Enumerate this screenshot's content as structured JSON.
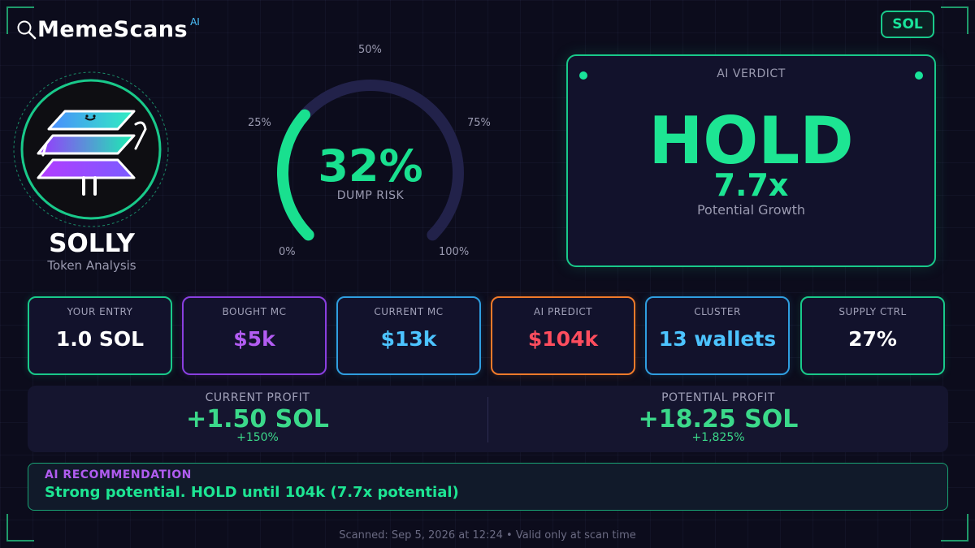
{
  "brand": {
    "name": "MemeScans",
    "badge": "AI"
  },
  "chain_button": {
    "label": "SOL"
  },
  "token": {
    "name": "SOLLY",
    "subtitle": "Token Analysis"
  },
  "gauge": {
    "value_text": "32%",
    "value": 0.32,
    "caption": "DUMP RISK",
    "ticks": [
      "0%",
      "25%",
      "50%",
      "75%",
      "100%"
    ],
    "colors": {
      "fill": "#19e08f",
      "track": "#22224a"
    }
  },
  "verdict": {
    "title": "AI VERDICT",
    "verdict": "HOLD",
    "multiplier": "7.7x",
    "caption": "Potential Growth"
  },
  "stats": [
    {
      "label": "YOUR ENTRY",
      "value": "1.0 SOL",
      "color": "#ffffff",
      "border": "#19c98a"
    },
    {
      "label": "BOUGHT MC",
      "value": "$5k",
      "color": "#b25cf2",
      "border": "#8a3fe0"
    },
    {
      "label": "CURRENT MC",
      "value": "$13k",
      "color": "#4cc3ff",
      "border": "#2f9ee0"
    },
    {
      "label": "AI PREDICT",
      "value": "$104k",
      "color": "#ff4d5e",
      "border": "#f07a2a"
    },
    {
      "label": "CLUSTER",
      "value": "13 wallets",
      "color": "#4cc3ff",
      "border": "#2f9ee0"
    },
    {
      "label": "SUPPLY CTRL",
      "value": "27%",
      "color": "#ffffff",
      "border": "#19c98a"
    }
  ],
  "profit": {
    "current": {
      "label": "CURRENT PROFIT",
      "value": "+1.50 SOL",
      "percent": "+150%"
    },
    "potential": {
      "label": "POTENTIAL PROFIT",
      "value": "+18.25 SOL",
      "percent": "+1,825%"
    }
  },
  "recommendation": {
    "label": "AI RECOMMENDATION",
    "text": "Strong potential. HOLD until 104k (7.7x potential)"
  },
  "footer": {
    "text": "Scanned: Sep 5, 2026 at 12:24  •  Valid only at scan time"
  }
}
